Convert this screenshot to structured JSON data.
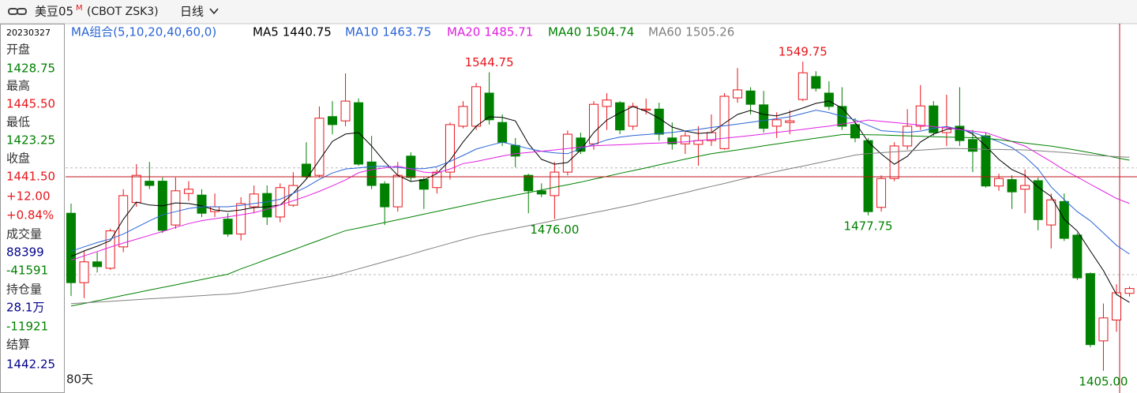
{
  "header": {
    "symbol": "美豆05",
    "badge": "M",
    "code": "(CBOT ZSK3)",
    "period": "日线"
  },
  "info_panel": {
    "items": [
      {
        "text": "20230327",
        "color": "#000000"
      },
      {
        "text": "开盘",
        "color": "#333333"
      },
      {
        "text": "1428.75",
        "color": "#008000"
      },
      {
        "text": "最高",
        "color": "#333333"
      },
      {
        "text": "1445.50",
        "color": "#e8151b"
      },
      {
        "text": "最低",
        "color": "#333333"
      },
      {
        "text": "1423.25",
        "color": "#008000"
      },
      {
        "text": "收盘",
        "color": "#333333"
      },
      {
        "text": "1441.50",
        "color": "#e8151b"
      },
      {
        "text": "+12.00",
        "color": "#e8151b"
      },
      {
        "text": "+0.84%",
        "color": "#e8151b"
      },
      {
        "text": "成交量",
        "color": "#333333"
      },
      {
        "text": "88399",
        "color": "#00008b"
      },
      {
        "text": "-41591",
        "color": "#008000"
      },
      {
        "text": "持仓量",
        "color": "#333333"
      },
      {
        "text": "28.1万",
        "color": "#00008b"
      },
      {
        "text": "-11921",
        "color": "#008000"
      },
      {
        "text": "结算",
        "color": "#333333"
      },
      {
        "text": "1442.25",
        "color": "#00008b"
      }
    ]
  },
  "chart_data": {
    "type": "candlestick",
    "indicator_label": "MA组合(5,10,20,40,60,0)",
    "footer": "80天",
    "up_color": "#e8151b",
    "down_color": "#008000",
    "ylim": [
      1395.7,
      1567.5
    ],
    "grid_values": [
      1450,
      1500
    ],
    "open": [
      1478.75,
      1446.25,
      1456.0,
      1453.0,
      1463.0,
      1483.75,
      1493.75,
      1493.75,
      1473.25,
      1488.0,
      1487.25,
      1479.5,
      1476.0,
      1469.0,
      1481.75,
      1488.0,
      1477.0,
      1482.5,
      1501.75,
      1496.5,
      1524.0,
      1522.0,
      1530.5,
      1502.75,
      1492.5,
      1481.75,
      1505.5,
      1494.5,
      1490.75,
      1498.0,
      1519.5,
      1519.5,
      1535.0,
      1521.25,
      1510.5,
      1496.5,
      1489.25,
      1487.0,
      1498.0,
      1514.0,
      1511.25,
      1528.75,
      1530.5,
      1519.5,
      1527.0,
      1527.5,
      1514.0,
      1511.25,
      1511.0,
      1512.75,
      1509.0,
      1532.75,
      1536.0,
      1529.5,
      1519.5,
      1521.25,
      1532.0,
      1542.75,
      1535.0,
      1528.75,
      1520.25,
      1512.75,
      1481.5,
      1495.0,
      1510.25,
      1519.5,
      1529.0,
      1516.5,
      1519.5,
      1513.25,
      1515.0,
      1491.5,
      1494.5,
      1490.0,
      1494.0,
      1473.25,
      1484.25,
      1468.5,
      1450.5,
      1419.0,
      1428.75,
      1441.25
    ],
    "high": [
      1483.25,
      1461.0,
      1460.5,
      1471.5,
      1490.0,
      1501.75,
      1502.75,
      1495.5,
      1495.5,
      1493.75,
      1490.0,
      1488.0,
      1478.75,
      1486.25,
      1491.75,
      1491.75,
      1492.75,
      1498.0,
      1512.0,
      1528.75,
      1531.25,
      1544.25,
      1532.5,
      1515.0,
      1493.75,
      1502.75,
      1507.25,
      1495.5,
      1499.25,
      1521.25,
      1531.25,
      1539.75,
      1544.75,
      1525.0,
      1514.0,
      1497.25,
      1492.75,
      1502.75,
      1517.5,
      1516.5,
      1531.25,
      1535.0,
      1531.25,
      1530.5,
      1532.5,
      1530.5,
      1521.25,
      1517.5,
      1519.5,
      1525.0,
      1535.0,
      1546.75,
      1537.75,
      1536.0,
      1526.0,
      1527.0,
      1549.75,
      1545.25,
      1540.5,
      1537.75,
      1523.25,
      1514.0,
      1496.5,
      1512.0,
      1527.5,
      1538.75,
      1531.25,
      1534.25,
      1537.75,
      1517.75,
      1516.5,
      1497.25,
      1496.5,
      1499.25,
      1495.5,
      1488.0,
      1488.0,
      1469.5,
      1451.0,
      1436.5,
      1445.5,
      1444.5
    ],
    "low": [
      1440.0,
      1439.0,
      1451.0,
      1452.25,
      1460.5,
      1481.75,
      1490.0,
      1469.5,
      1471.5,
      1484.5,
      1477.0,
      1477.0,
      1467.75,
      1466.0,
      1478.75,
      1473.25,
      1474.5,
      1481.75,
      1495.0,
      1495.5,
      1515.75,
      1519.5,
      1501.0,
      1490.0,
      1473.25,
      1479.5,
      1493.75,
      1480.75,
      1488.0,
      1494.5,
      1518.5,
      1517.75,
      1520.25,
      1510.25,
      1500.25,
      1478.75,
      1486.25,
      1476.0,
      1496.5,
      1506.5,
      1508.5,
      1517.75,
      1515.75,
      1517.75,
      1525.0,
      1512.75,
      1508.5,
      1506.5,
      1501.0,
      1510.25,
      1508.5,
      1530.5,
      1525.0,
      1516.5,
      1514.0,
      1515.75,
      1531.25,
      1535.75,
      1527.0,
      1517.75,
      1512.0,
      1477.75,
      1479.5,
      1493.75,
      1508.5,
      1517.75,
      1515.0,
      1510.25,
      1510.25,
      1498.0,
      1490.75,
      1489.25,
      1480.75,
      1478.75,
      1470.75,
      1462.25,
      1465.75,
      1447.5,
      1416.0,
      1405.0,
      1423.25,
      1439.75
    ],
    "close": [
      1446.25,
      1456.0,
      1453.75,
      1470.5,
      1487.0,
      1496.5,
      1491.75,
      1470.75,
      1489.25,
      1490.0,
      1478.75,
      1481.75,
      1469.0,
      1483.25,
      1487.75,
      1477.0,
      1490.75,
      1491.75,
      1495.75,
      1523.25,
      1520.25,
      1531.25,
      1501.75,
      1491.75,
      1481.75,
      1496.5,
      1495.5,
      1490.0,
      1498.0,
      1520.25,
      1528.75,
      1538.0,
      1522.5,
      1512.0,
      1505.5,
      1489.25,
      1487.75,
      1498.0,
      1515.75,
      1507.75,
      1529.75,
      1531.75,
      1517.75,
      1528.75,
      1527.5,
      1515.75,
      1511.25,
      1515.0,
      1512.75,
      1516.5,
      1533.5,
      1536.5,
      1529.75,
      1518.5,
      1522.5,
      1522.0,
      1544.5,
      1537.25,
      1528.75,
      1519.5,
      1514.0,
      1479.5,
      1495.0,
      1510.25,
      1519.5,
      1529.0,
      1516.5,
      1518.75,
      1512.75,
      1507.75,
      1491.5,
      1495.0,
      1488.75,
      1491.75,
      1475.75,
      1485.0,
      1467.0,
      1448.5,
      1417.25,
      1429.75,
      1441.5,
      1443.5
    ],
    "series": [
      {
        "name": "MA5",
        "color": "#000000",
        "values": [
          1458.5,
          1461.1,
          1463.3,
          1465.9,
          1475.9,
          1484.0,
          1482.6,
          1482.2,
          1483.6,
          1483.3,
          1482.2,
          1480.3,
          1479.6,
          1480.3,
          1481.4,
          1481.8,
          1482.6,
          1488.1,
          1494.7,
          1503.6,
          1512.4,
          1515.8,
          1516.5,
          1510.2,
          1502.8,
          1496.5,
          1493.6,
          1494.4,
          1497.3,
          1503.6,
          1512.1,
          1519.5,
          1523.9,
          1523.6,
          1522.0,
          1511.3,
          1504.0,
          1501.7,
          1502.5,
          1508.4,
          1516.5,
          1522.4,
          1525.7,
          1528.7,
          1526.5,
          1523.2,
          1519.1,
          1517.2,
          1516.1,
          1516.5,
          1520.9,
          1525.0,
          1526.9,
          1525.0,
          1524.3,
          1526.1,
          1528.0,
          1530.2,
          1531.3,
          1528.0,
          1521.3,
          1512.1,
          1506.5,
          1501.7,
          1505.4,
          1512.1,
          1515.8,
          1518.0,
          1518.7,
          1515.8,
          1510.2,
          1504.0,
          1499.2,
          1496.5,
          1491.0,
          1486.6,
          1475.9,
          1470.4,
          1461.1,
          1451.9,
          1440.75,
          1437.0
        ]
      },
      {
        "name": "MA10",
        "color": "#2a64d6",
        "values": [
          1461.0,
          1463.0,
          1465.0,
          1466.7,
          1469.0,
          1472.1,
          1475.2,
          1478.0,
          1479.5,
          1481.0,
          1481.8,
          1481.8,
          1481.8,
          1482.4,
          1483.3,
          1484.1,
          1485.3,
          1488.1,
          1491.0,
          1494.6,
          1497.6,
          1499.5,
          1500.0,
          1500.6,
          1500.8,
          1500.2,
          1499.6,
          1499.6,
          1500.6,
          1503.0,
          1505.8,
          1508.8,
          1510.5,
          1512.0,
          1510.6,
          1509.0,
          1507.8,
          1507.0,
          1506.6,
          1509.0,
          1511.0,
          1513.1,
          1514.4,
          1515.1,
          1515.6,
          1516.1,
          1516.6,
          1517.3,
          1518.0,
          1518.9,
          1519.7,
          1520.5,
          1521.3,
          1522.2,
          1523.0,
          1523.9,
          1525.4,
          1527.0,
          1525.9,
          1524.1,
          1522.5,
          1519.9,
          1517.4,
          1517.0,
          1516.6,
          1517.2,
          1518.5,
          1519.4,
          1518.0,
          1516.6,
          1514.5,
          1512.2,
          1509.5,
          1505.2,
          1499.5,
          1491.1,
          1485.1,
          1479.5,
          1475.2,
          1469.5,
          1463.75,
          1459.6
        ]
      },
      {
        "name": "MA20",
        "color": "#e020e0",
        "values": [
          1456.7,
          1458.8,
          1460.8,
          1462.9,
          1464.8,
          1466.6,
          1468.4,
          1470.2,
          1472.1,
          1473.9,
          1475.3,
          1476.2,
          1477.1,
          1478.0,
          1479.0,
          1480.6,
          1482.6,
          1484.6,
          1486.7,
          1489.0,
          1491.6,
          1494.3,
          1497.7,
          1499.2,
          1500.0,
          1500.8,
          1499.5,
          1498.0,
          1497.6,
          1499.5,
          1502.0,
          1503.0,
          1504.3,
          1505.5,
          1506.6,
          1507.2,
          1507.8,
          1508.4,
          1509.0,
          1509.8,
          1510.3,
          1510.6,
          1510.8,
          1511.1,
          1511.4,
          1511.6,
          1511.9,
          1512.2,
          1512.8,
          1513.3,
          1513.9,
          1514.5,
          1515.1,
          1515.8,
          1516.6,
          1517.3,
          1518.0,
          1518.8,
          1519.5,
          1520.5,
          1521.4,
          1522.4,
          1521.8,
          1521.2,
          1520.6,
          1520.0,
          1519.3,
          1518.7,
          1518.0,
          1517.2,
          1516.5,
          1514.4,
          1512.3,
          1510.2,
          1506.5,
          1502.9,
          1499.0,
          1495.7,
          1492.3,
          1489.0,
          1485.71,
          1483.3
        ]
      },
      {
        "name": "MA40",
        "color": "#008000",
        "values": [
          1435.3,
          1436.5,
          1437.8,
          1439.0,
          1440.3,
          1441.5,
          1442.8,
          1444.0,
          1445.2,
          1446.5,
          1447.7,
          1449.0,
          1450.2,
          1452.7,
          1454.9,
          1457.2,
          1459.4,
          1461.6,
          1463.9,
          1466.1,
          1468.4,
          1470.6,
          1471.8,
          1473.1,
          1474.4,
          1475.7,
          1477.0,
          1478.3,
          1479.6,
          1480.9,
          1482.2,
          1483.5,
          1484.8,
          1486.0,
          1487.2,
          1488.4,
          1489.6,
          1490.9,
          1492.1,
          1493.3,
          1494.7,
          1496.0,
          1497.4,
          1498.7,
          1500.0,
          1501.4,
          1502.7,
          1504.1,
          1505.4,
          1506.6,
          1507.5,
          1508.4,
          1509.3,
          1510.3,
          1511.2,
          1512.1,
          1513.0,
          1513.9,
          1514.7,
          1515.6,
          1515.7,
          1515.5,
          1515.4,
          1515.2,
          1515.0,
          1514.8,
          1514.6,
          1514.4,
          1514.3,
          1514.1,
          1513.9,
          1513.2,
          1512.4,
          1511.6,
          1510.9,
          1510.2,
          1509.2,
          1508.2,
          1507.1,
          1506.0,
          1504.74,
          1503.6
        ]
      },
      {
        "name": "MA60",
        "color": "#808080",
        "values": [
          1436.4,
          1436.8,
          1437.2,
          1437.5,
          1437.9,
          1438.3,
          1438.7,
          1439.0,
          1439.4,
          1439.8,
          1440.2,
          1440.6,
          1440.9,
          1441.5,
          1442.6,
          1443.7,
          1444.8,
          1445.9,
          1447.0,
          1448.2,
          1449.3,
          1451.0,
          1452.7,
          1454.4,
          1456.1,
          1457.8,
          1459.5,
          1461.3,
          1463.0,
          1464.7,
          1466.4,
          1468.0,
          1469.3,
          1470.5,
          1471.7,
          1472.9,
          1474.1,
          1475.4,
          1476.6,
          1477.8,
          1479.0,
          1480.2,
          1481.5,
          1482.7,
          1484.2,
          1485.6,
          1487.0,
          1488.4,
          1489.9,
          1491.3,
          1492.7,
          1494.2,
          1495.6,
          1497.0,
          1498.3,
          1499.6,
          1500.8,
          1502.1,
          1503.4,
          1504.7,
          1506.0,
          1506.7,
          1507.1,
          1507.5,
          1507.9,
          1508.3,
          1508.7,
          1509.1,
          1509.0,
          1508.9,
          1508.7,
          1508.6,
          1508.5,
          1508.4,
          1508.0,
          1507.6,
          1507.2,
          1506.6,
          1506.0,
          1505.6,
          1505.26,
          1505.0
        ]
      }
    ],
    "annotations": [
      "1544.75",
      "1549.75",
      "1476.00",
      "1477.75",
      "1405.00"
    ]
  }
}
